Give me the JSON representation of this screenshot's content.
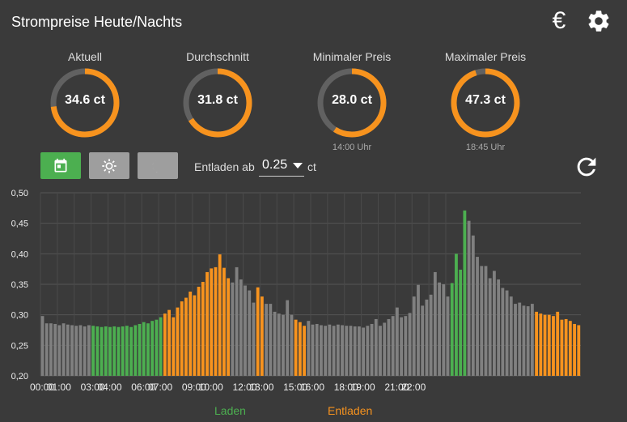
{
  "header": {
    "title": "Strompreise Heute/Nachts"
  },
  "gauges": [
    {
      "label": "Aktuell",
      "value": "34.6 ct",
      "fraction": 0.73,
      "sub": ""
    },
    {
      "label": "Durchschnitt",
      "value": "31.8 ct",
      "fraction": 0.66,
      "sub": ""
    },
    {
      "label": "Minimaler Preis",
      "value": "28.0 ct",
      "fraction": 0.59,
      "sub": "14:00 Uhr"
    },
    {
      "label": "Maximaler Preis",
      "value": "47.3 ct",
      "fraction": 0.95,
      "sub": "18:45 Uhr"
    }
  ],
  "controls": {
    "entladen_label": "Entladen ab",
    "threshold_value": "0.25",
    "unit": "ct"
  },
  "icons": {
    "currency": "euro-icon",
    "settings": "gear-icon",
    "calendar": "calendar-icon",
    "day": "sun-icon",
    "night": "moon-icon",
    "refresh": "refresh-icon"
  },
  "colors": {
    "background": "#3a3a3a",
    "accent": "#f7931e",
    "laden": "#4caf50",
    "neutral": "#808080",
    "ring_track": "#616161"
  },
  "legend": {
    "laden": "Laden",
    "entladen": "Entladen"
  },
  "chart_data": {
    "type": "bar",
    "title": "",
    "xlabel": "",
    "ylabel": "",
    "ylim": [
      0.2,
      0.5
    ],
    "y_ticks": [
      "0,50",
      "0,45",
      "0,40",
      "0,35",
      "0,30",
      "0,25",
      "0,20"
    ],
    "x_ticks": [
      "00:00",
      "01:00",
      "03:00",
      "04:00",
      "06:00",
      "07:00",
      "09:00",
      "10:00",
      "12:00",
      "13:00",
      "15:00",
      "16:00",
      "18:00",
      "19:00",
      "21:00",
      "22:00"
    ],
    "grid": true,
    "legend_position": "bottom",
    "interval_minutes": 15,
    "categories_ref": "one bar per 15 minutes from 00:00",
    "values": [
      0.298,
      0.286,
      0.286,
      0.285,
      0.283,
      0.286,
      0.284,
      0.283,
      0.282,
      0.283,
      0.281,
      0.283,
      0.282,
      0.281,
      0.28,
      0.281,
      0.28,
      0.281,
      0.28,
      0.281,
      0.282,
      0.28,
      0.283,
      0.285,
      0.288,
      0.286,
      0.29,
      0.292,
      0.296,
      0.302,
      0.308,
      0.296,
      0.312,
      0.322,
      0.328,
      0.338,
      0.332,
      0.346,
      0.354,
      0.37,
      0.376,
      0.378,
      0.399,
      0.377,
      0.36,
      0.353,
      0.378,
      0.358,
      0.348,
      0.34,
      0.32,
      0.345,
      0.33,
      0.318,
      0.318,
      0.305,
      0.302,
      0.3,
      0.324,
      0.3,
      0.292,
      0.288,
      0.282,
      0.29,
      0.284,
      0.285,
      0.283,
      0.282,
      0.284,
      0.282,
      0.284,
      0.283,
      0.282,
      0.282,
      0.281,
      0.281,
      0.279,
      0.282,
      0.285,
      0.293,
      0.282,
      0.287,
      0.293,
      0.298,
      0.312,
      0.296,
      0.298,
      0.303,
      0.33,
      0.349,
      0.315,
      0.325,
      0.333,
      0.37,
      0.353,
      0.35,
      0.33,
      0.352,
      0.4,
      0.374,
      0.471,
      0.454,
      0.43,
      0.395,
      0.38,
      0.38,
      0.36,
      0.372,
      0.358,
      0.344,
      0.34,
      0.33,
      0.318,
      0.32,
      0.315,
      0.314,
      0.318,
      0.305,
      0.302,
      0.3,
      0.3,
      0.298,
      0.305,
      0.292,
      0.293,
      0.29,
      0.285,
      0.283
    ],
    "series": [
      {
        "name": "Laden",
        "color": "#4caf50",
        "ranges": [
          [
            12,
            28
          ],
          [
            97,
            100
          ]
        ]
      },
      {
        "name": "Entladen",
        "color": "#f7931e",
        "ranges": [
          [
            29,
            44
          ],
          [
            51,
            52
          ],
          [
            60,
            62
          ],
          [
            117,
            135
          ]
        ]
      }
    ]
  }
}
